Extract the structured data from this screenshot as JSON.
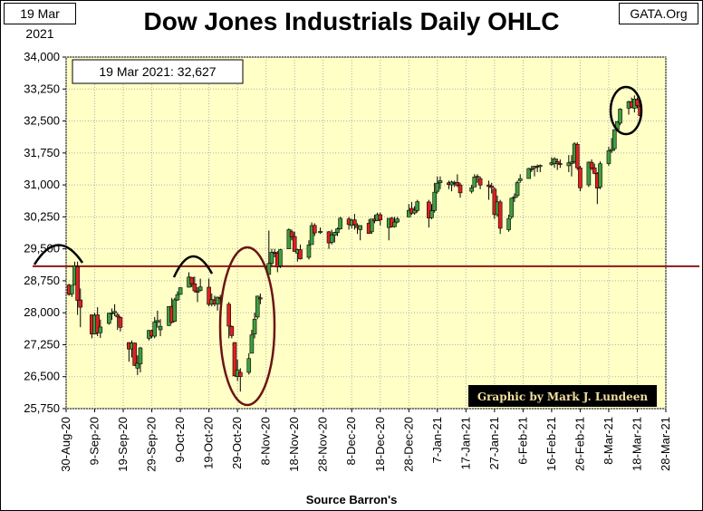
{
  "header": {
    "date_label": "19 Mar 2021",
    "source_label": "GATA.Org",
    "title": "Dow Jones Industrials Daily OHLC"
  },
  "annotations": {
    "last_value": "19 Mar 2021:  32,627",
    "credit": "Graphic by Mark J. Lundeen",
    "resistance_level": 29090
  },
  "colors": {
    "plot_bg": "#ffffc6",
    "up_body": "#3f9e3f",
    "down_body": "#e02020",
    "annotation": "#6b1414",
    "resistance_line": "#8b1a1a",
    "credit_bg": "#000000",
    "credit_text": "#f2dfa0"
  },
  "chart_data": {
    "type": "ohlc-candlestick",
    "title": "Dow Jones Industrials Daily OHLC",
    "xlabel": "Source Barron's",
    "ylabel": "",
    "ylim": [
      25750,
      34000
    ],
    "yticks": [
      25750,
      26500,
      27250,
      28000,
      28750,
      29500,
      30250,
      31000,
      31750,
      32500,
      33250,
      34000
    ],
    "ytick_labels": [
      "25,750",
      "26,500",
      "27,250",
      "28,000",
      "28,750",
      "29,500",
      "30,250",
      "31,000",
      "31,750",
      "32,500",
      "33,250",
      "34,000"
    ],
    "xlim": [
      "2020-08-30",
      "2021-03-28"
    ],
    "xticks": [
      "2020-08-30",
      "2020-09-09",
      "2020-09-19",
      "2020-09-29",
      "2020-10-09",
      "2020-10-19",
      "2020-10-29",
      "2020-11-08",
      "2020-11-18",
      "2020-11-28",
      "2020-12-08",
      "2020-12-18",
      "2020-12-28",
      "2021-01-07",
      "2021-01-17",
      "2021-01-27",
      "2021-02-06",
      "2021-02-16",
      "2021-02-26",
      "2021-03-08",
      "2021-03-18",
      "2021-03-28"
    ],
    "xtick_labels": [
      "30-Aug-20",
      "9-Sep-20",
      "19-Sep-20",
      "29-Sep-20",
      "9-Oct-20",
      "19-Oct-20",
      "29-Oct-20",
      "8-Nov-20",
      "18-Nov-20",
      "28-Nov-20",
      "8-Dec-20",
      "18-Dec-20",
      "28-Dec-20",
      "7-Jan-21",
      "17-Jan-21",
      "27-Jan-21",
      "6-Feb-21",
      "16-Feb-21",
      "26-Feb-21",
      "8-Mar-21",
      "18-Mar-21",
      "28-Mar-21"
    ],
    "grid": true,
    "series": [
      {
        "columns": [
          "date",
          "open",
          "high",
          "low",
          "close"
        ],
        "values": [
          [
            "2020-08-31",
            28650,
            28680,
            28400,
            28430
          ],
          [
            "2020-09-01",
            28440,
            28650,
            28370,
            28645
          ],
          [
            "2020-09-02",
            28660,
            29200,
            28650,
            29100
          ],
          [
            "2020-09-03",
            29080,
            29200,
            27950,
            28290
          ],
          [
            "2020-09-04",
            28300,
            28570,
            27660,
            28130
          ],
          [
            "2020-09-08",
            27950,
            27960,
            27400,
            27500
          ],
          [
            "2020-09-09",
            27500,
            28000,
            27500,
            27940
          ],
          [
            "2020-09-10",
            27950,
            28130,
            27450,
            27530
          ],
          [
            "2020-09-11",
            27530,
            27840,
            27410,
            27665
          ],
          [
            "2020-09-14",
            27750,
            28000,
            27720,
            27990
          ],
          [
            "2020-09-15",
            27990,
            28100,
            27830,
            27995
          ],
          [
            "2020-09-16",
            27995,
            28200,
            27920,
            28030
          ],
          [
            "2020-09-17",
            27950,
            28000,
            27600,
            27900
          ],
          [
            "2020-09-18",
            27890,
            27920,
            27560,
            27657
          ],
          [
            "2020-09-21",
            27300,
            27310,
            26850,
            27148
          ],
          [
            "2020-09-22",
            27150,
            27350,
            26950,
            27288
          ],
          [
            "2020-09-23",
            27290,
            27300,
            26750,
            26763
          ],
          [
            "2020-09-24",
            26700,
            27000,
            26540,
            26815
          ],
          [
            "2020-09-25",
            26800,
            27200,
            26600,
            27174
          ],
          [
            "2020-09-28",
            27400,
            27600,
            27350,
            27584
          ],
          [
            "2020-09-29",
            27580,
            27600,
            27400,
            27453
          ],
          [
            "2020-09-30",
            27450,
            27900,
            27400,
            27782
          ],
          [
            "2020-10-01",
            27780,
            28050,
            27650,
            27817
          ],
          [
            "2020-10-02",
            27600,
            27850,
            27450,
            27682
          ],
          [
            "2020-10-05",
            27700,
            28150,
            27690,
            28148
          ],
          [
            "2020-10-06",
            28150,
            28350,
            27750,
            27773
          ],
          [
            "2020-10-07",
            27800,
            28350,
            27780,
            28303
          ],
          [
            "2020-10-08",
            28300,
            28500,
            28280,
            28426
          ],
          [
            "2020-10-09",
            28430,
            28600,
            28420,
            28587
          ],
          [
            "2020-10-12",
            28600,
            28950,
            28590,
            28838
          ],
          [
            "2020-10-13",
            28830,
            28840,
            28600,
            28680
          ],
          [
            "2020-10-14",
            28680,
            28850,
            28470,
            28514
          ],
          [
            "2020-10-15",
            28500,
            28600,
            28250,
            28494
          ],
          [
            "2020-10-16",
            28520,
            28800,
            28500,
            28606
          ],
          [
            "2020-10-19",
            28600,
            28800,
            28150,
            28195
          ],
          [
            "2020-10-20",
            28200,
            28450,
            28150,
            28309
          ],
          [
            "2020-10-21",
            28300,
            28400,
            28150,
            28211
          ],
          [
            "2020-10-22",
            28200,
            28380,
            28050,
            28364
          ],
          [
            "2020-10-23",
            28360,
            28420,
            28200,
            28336
          ],
          [
            "2020-10-26",
            28200,
            28250,
            27400,
            27685
          ],
          [
            "2020-10-27",
            27680,
            27700,
            27400,
            27464
          ],
          [
            "2020-10-28",
            27300,
            27310,
            26500,
            26520
          ],
          [
            "2020-10-29",
            26500,
            26900,
            26400,
            26660
          ],
          [
            "2020-10-30",
            26600,
            26700,
            26150,
            26502
          ],
          [
            "2020-11-02",
            26600,
            27050,
            26550,
            26925
          ],
          [
            "2020-11-03",
            27050,
            27600,
            27050,
            27480
          ],
          [
            "2020-11-04",
            27500,
            28000,
            27400,
            27847
          ],
          [
            "2020-11-05",
            27900,
            28400,
            27850,
            28390
          ],
          [
            "2020-11-06",
            28350,
            28450,
            28200,
            28323
          ],
          [
            "2020-11-09",
            28900,
            29930,
            28900,
            29158
          ],
          [
            "2020-11-10",
            29160,
            29500,
            29100,
            29421
          ],
          [
            "2020-11-11",
            29420,
            29500,
            29300,
            29398
          ],
          [
            "2020-11-12",
            29400,
            29450,
            28950,
            29080
          ],
          [
            "2020-11-13",
            29100,
            29500,
            29050,
            29480
          ],
          [
            "2020-11-16",
            29500,
            29980,
            29500,
            29950
          ],
          [
            "2020-11-17",
            29900,
            29950,
            29700,
            29783
          ],
          [
            "2020-11-18",
            29790,
            29900,
            29430,
            29438
          ],
          [
            "2020-11-19",
            29400,
            29500,
            29200,
            29483
          ],
          [
            "2020-11-20",
            29480,
            29600,
            29250,
            29263
          ],
          [
            "2020-11-23",
            29300,
            29700,
            29250,
            29591
          ],
          [
            "2020-11-24",
            29600,
            30120,
            29600,
            30046
          ],
          [
            "2020-11-25",
            30050,
            30100,
            29800,
            29873
          ],
          [
            "2020-11-27",
            29880,
            30000,
            29850,
            29910
          ],
          [
            "2020-11-30",
            29900,
            29920,
            29500,
            29639
          ],
          [
            "2020-12-01",
            29650,
            29950,
            29600,
            29824
          ],
          [
            "2020-12-02",
            29820,
            29900,
            29650,
            29883
          ],
          [
            "2020-12-03",
            29880,
            30000,
            29800,
            29969
          ],
          [
            "2020-12-04",
            29970,
            30250,
            29950,
            30218
          ],
          [
            "2020-12-07",
            30200,
            30250,
            29950,
            30070
          ],
          [
            "2020-12-08",
            30050,
            30200,
            29980,
            30174
          ],
          [
            "2020-12-09",
            30180,
            30320,
            29950,
            30068
          ],
          [
            "2020-12-10",
            30050,
            30100,
            29850,
            29999
          ],
          [
            "2020-12-11",
            29950,
            30050,
            29700,
            30046
          ],
          [
            "2020-12-14",
            30100,
            30200,
            29850,
            29861
          ],
          [
            "2020-12-15",
            29900,
            30200,
            29850,
            30200
          ],
          [
            "2020-12-16",
            30200,
            30300,
            30100,
            30155
          ],
          [
            "2020-12-17",
            30160,
            30350,
            30150,
            30304
          ],
          [
            "2020-12-18",
            30300,
            30350,
            30050,
            30179
          ],
          [
            "2020-12-21",
            30000,
            30200,
            29700,
            30216
          ],
          [
            "2020-12-22",
            30220,
            30250,
            30000,
            30015
          ],
          [
            "2020-12-23",
            30020,
            30250,
            30000,
            30129
          ],
          [
            "2020-12-24",
            30130,
            30250,
            30100,
            30200
          ],
          [
            "2020-12-28",
            30250,
            30550,
            30250,
            30404
          ],
          [
            "2020-12-29",
            30450,
            30600,
            30300,
            30336
          ],
          [
            "2020-12-30",
            30340,
            30500,
            30300,
            30409
          ],
          [
            "2020-12-31",
            30400,
            30650,
            30350,
            30606
          ],
          [
            "2021-01-04",
            30600,
            30650,
            30000,
            30224
          ],
          [
            "2021-01-05",
            30230,
            30550,
            30200,
            30392
          ],
          [
            "2021-01-06",
            30400,
            31050,
            30350,
            30829
          ],
          [
            "2021-01-07",
            30850,
            31200,
            30800,
            31041
          ],
          [
            "2021-01-08",
            31050,
            31200,
            30900,
            31098
          ],
          [
            "2021-01-11",
            31050,
            31100,
            30900,
            31009
          ],
          [
            "2021-01-12",
            31000,
            31100,
            30850,
            31068
          ],
          [
            "2021-01-13",
            31050,
            31100,
            30950,
            31061
          ],
          [
            "2021-01-14",
            31060,
            31250,
            30950,
            30992
          ],
          [
            "2021-01-15",
            31000,
            31050,
            30700,
            30814
          ],
          [
            "2021-01-19",
            30850,
            31000,
            30800,
            30931
          ],
          [
            "2021-01-20",
            30950,
            31250,
            30950,
            31188
          ],
          [
            "2021-01-21",
            31200,
            31250,
            31050,
            31176
          ],
          [
            "2021-01-22",
            31150,
            31200,
            30900,
            30997
          ],
          [
            "2021-01-25",
            31000,
            31100,
            30650,
            30960
          ],
          [
            "2021-01-26",
            30970,
            31050,
            30800,
            30937
          ],
          [
            "2021-01-27",
            30900,
            30950,
            30200,
            30303
          ],
          [
            "2021-01-28",
            30300,
            30750,
            30250,
            30603
          ],
          [
            "2021-01-29",
            30600,
            30650,
            29850,
            29983
          ],
          [
            "2021-02-01",
            29950,
            30300,
            29900,
            30212
          ],
          [
            "2021-02-02",
            30250,
            30700,
            30200,
            30688
          ],
          [
            "2021-02-03",
            30700,
            30800,
            30600,
            30724
          ],
          [
            "2021-02-04",
            30750,
            31100,
            30700,
            31056
          ],
          [
            "2021-02-05",
            31100,
            31250,
            31050,
            31148
          ],
          [
            "2021-02-08",
            31150,
            31400,
            31150,
            31386
          ],
          [
            "2021-02-09",
            31380,
            31450,
            31300,
            31376
          ],
          [
            "2021-02-10",
            31400,
            31450,
            31200,
            31438
          ],
          [
            "2021-02-11",
            31440,
            31480,
            31300,
            31431
          ],
          [
            "2021-02-12",
            31430,
            31480,
            31300,
            31458
          ],
          [
            "2021-02-16",
            31480,
            31650,
            31450,
            31523
          ],
          [
            "2021-02-17",
            31500,
            31650,
            31400,
            31613
          ],
          [
            "2021-02-18",
            31550,
            31620,
            31350,
            31494
          ],
          [
            "2021-02-19",
            31500,
            31600,
            31400,
            31494
          ],
          [
            "2021-02-22",
            31450,
            31700,
            31300,
            31521
          ],
          [
            "2021-02-23",
            31500,
            31700,
            31200,
            31537
          ],
          [
            "2021-02-24",
            31550,
            32000,
            31500,
            31962
          ],
          [
            "2021-02-25",
            31950,
            32000,
            31350,
            31402
          ],
          [
            "2021-02-26",
            31400,
            31450,
            30850,
            30932
          ],
          [
            "2021-03-01",
            31000,
            31550,
            30950,
            31535
          ],
          [
            "2021-03-02",
            31530,
            31600,
            31350,
            31391
          ],
          [
            "2021-03-03",
            31400,
            31500,
            31250,
            31270
          ],
          [
            "2021-03-04",
            31270,
            31300,
            30550,
            30924
          ],
          [
            "2021-03-05",
            30950,
            31550,
            30900,
            31496
          ],
          [
            "2021-03-08",
            31500,
            31900,
            31450,
            31802
          ],
          [
            "2021-03-09",
            31800,
            32100,
            31750,
            31832
          ],
          [
            "2021-03-10",
            31850,
            32200,
            31800,
            32297
          ],
          [
            "2021-03-11",
            32300,
            32500,
            32250,
            32485
          ],
          [
            "2021-03-12",
            32450,
            32800,
            32400,
            32779
          ],
          [
            "2021-03-15",
            32800,
            32980,
            32650,
            32953
          ],
          [
            "2021-03-16",
            32950,
            33050,
            32800,
            32826
          ],
          [
            "2021-03-17",
            32800,
            33100,
            32700,
            33015
          ],
          [
            "2021-03-18",
            33000,
            33050,
            32800,
            32862
          ],
          [
            "2021-03-19",
            32850,
            32900,
            32550,
            32627
          ]
        ]
      }
    ]
  }
}
